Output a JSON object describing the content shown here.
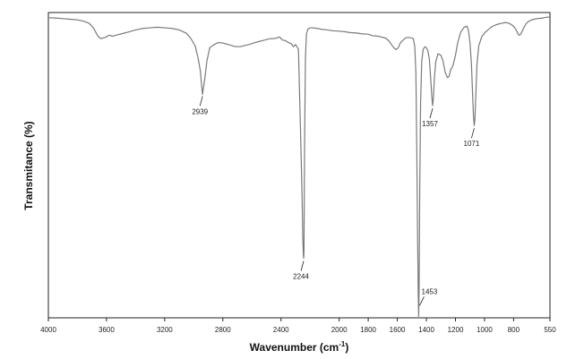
{
  "chart_data": {
    "type": "line",
    "xlabel": "Wavenumber",
    "xlabel_unit_base": "(cm",
    "xlabel_unit_sup": "-1",
    "xlabel_unit_end": ")",
    "ylabel": "Transmitance (%)",
    "xlim": [
      4000,
      550
    ],
    "x_reversed": true,
    "ylim": [
      0,
      100
    ],
    "grid": false,
    "legend": "none",
    "line_color": "#7a7a7a",
    "x_ticks": [
      {
        "value": 4000,
        "label": "4000"
      },
      {
        "value": 3600,
        "label": "3600"
      },
      {
        "value": 3200,
        "label": "3200"
      },
      {
        "value": 2800,
        "label": "2800"
      },
      {
        "value": 2400,
        "label": "2400"
      },
      {
        "value": 2000,
        "label": "2000"
      },
      {
        "value": 1800,
        "label": "1800"
      },
      {
        "value": 1600,
        "label": "1600"
      },
      {
        "value": 1400,
        "label": "1400"
      },
      {
        "value": 1200,
        "label": "1200"
      },
      {
        "value": 1000,
        "label": "1000"
      },
      {
        "value": 800,
        "label": "800"
      },
      {
        "value": 550,
        "label": "550"
      }
    ],
    "annotations": [
      {
        "x": 2939,
        "label": "2939"
      },
      {
        "x": 2244,
        "label": "2244"
      },
      {
        "x": 1453,
        "label": "1453"
      },
      {
        "x": 1357,
        "label": "1357"
      },
      {
        "x": 1071,
        "label": "1071"
      }
    ],
    "series": [
      {
        "x": [
          4000,
          3950,
          3900,
          3850,
          3800,
          3760,
          3720,
          3690,
          3660,
          3640,
          3610,
          3580,
          3560,
          3540,
          3500,
          3450,
          3400,
          3350,
          3300,
          3250,
          3200,
          3150,
          3100,
          3050,
          3020,
          2990,
          2970,
          2955,
          2940,
          2925,
          2910,
          2890,
          2860,
          2830,
          2800,
          2760,
          2720,
          2680,
          2650,
          2620,
          2590,
          2560,
          2520,
          2480,
          2440,
          2410,
          2390,
          2370,
          2350,
          2330,
          2315,
          2300,
          2280,
          2265,
          2255,
          2250,
          2246,
          2244,
          2242,
          2238,
          2232,
          2225,
          2215,
          2200,
          2180,
          2150,
          2120,
          2080,
          2040,
          2000,
          1960,
          1920,
          1880,
          1840,
          1800,
          1770,
          1740,
          1710,
          1680,
          1660,
          1640,
          1625,
          1610,
          1600,
          1590,
          1580,
          1560,
          1540,
          1520,
          1500,
          1490,
          1480,
          1472,
          1466,
          1460,
          1456,
          1453,
          1450,
          1446,
          1440,
          1432,
          1422,
          1410,
          1400,
          1390,
          1380,
          1370,
          1362,
          1357,
          1352,
          1345,
          1335,
          1320,
          1300,
          1285,
          1270,
          1255,
          1245,
          1238,
          1232,
          1225,
          1215,
          1200,
          1185,
          1165,
          1140,
          1120,
          1110,
          1100,
          1090,
          1082,
          1076,
          1071,
          1066,
          1060,
          1052,
          1040,
          1020,
          1000,
          980,
          960,
          940,
          920,
          900,
          880,
          860,
          840,
          820,
          800,
          785,
          775,
          765,
          755,
          745,
          730,
          715,
          700,
          680,
          660,
          640,
          620,
          600,
          580,
          560,
          550
        ],
        "y": [
          98.3,
          98.2,
          98.0,
          97.8,
          97.6,
          97.2,
          96.5,
          95.0,
          92.3,
          91.5,
          91.8,
          92.6,
          92.2,
          92.5,
          93.0,
          93.6,
          94.3,
          94.8,
          95.0,
          95.2,
          95.0,
          94.8,
          94.3,
          93.2,
          91.5,
          89.0,
          85.0,
          81.0,
          73.2,
          78.0,
          84.0,
          88.5,
          89.5,
          90.2,
          90.0,
          89.5,
          88.9,
          88.8,
          89.2,
          89.5,
          90.0,
          90.4,
          90.9,
          91.4,
          91.5,
          92.0,
          91.0,
          90.8,
          90.2,
          89.8,
          88.8,
          89.5,
          88.0,
          60.0,
          40.0,
          26.0,
          20.5,
          19.5,
          22.0,
          55.0,
          85.0,
          93.0,
          94.5,
          95.0,
          95.0,
          94.8,
          94.5,
          94.3,
          94.0,
          93.9,
          93.7,
          93.4,
          93.3,
          93.0,
          92.9,
          92.4,
          92.3,
          92.0,
          91.6,
          90.8,
          89.5,
          88.5,
          87.9,
          88.1,
          88.8,
          90.0,
          91.0,
          91.8,
          91.8,
          91.7,
          91.4,
          89.0,
          80.0,
          55.0,
          25.0,
          8.0,
          0.5,
          10.0,
          40.0,
          70.0,
          84.0,
          88.0,
          88.8,
          88.5,
          87.5,
          85.0,
          78.0,
          72.0,
          69.5,
          72.0,
          78.5,
          84.0,
          86.5,
          86.0,
          84.0,
          80.3,
          78.7,
          79.0,
          80.2,
          81.5,
          81.8,
          83.0,
          86.0,
          90.0,
          93.5,
          95.2,
          95.5,
          94.0,
          90.0,
          83.0,
          73.0,
          66.0,
          63.0,
          65.0,
          73.0,
          83.0,
          89.0,
          92.0,
          93.3,
          94.2,
          95.0,
          95.6,
          96.0,
          96.3,
          96.5,
          96.7,
          96.6,
          96.2,
          95.5,
          94.5,
          93.5,
          92.6,
          92.7,
          93.5,
          95.0,
          96.3,
          97.0,
          97.5,
          97.8,
          98.0,
          98.1,
          98.2,
          98.4,
          98.5,
          98.5
        ]
      }
    ]
  }
}
